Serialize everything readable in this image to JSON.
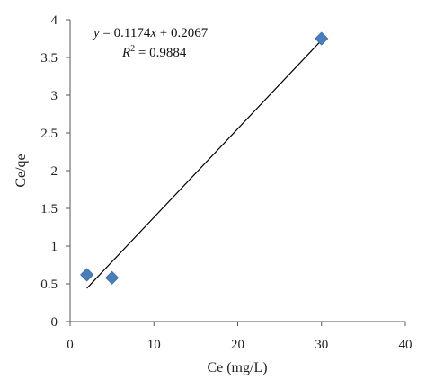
{
  "chart_data": {
    "type": "scatter",
    "xlabel": "Ce (mg/L)",
    "ylabel": "Ce/qe",
    "xlim": [
      0,
      40
    ],
    "ylim": [
      0,
      4
    ],
    "x_ticks": [
      0,
      10,
      20,
      30,
      40
    ],
    "y_ticks": [
      0,
      0.5,
      1,
      1.5,
      2,
      2.5,
      3,
      3.5,
      4
    ],
    "x_tick_labels": [
      "0",
      "10",
      "20",
      "30",
      "40"
    ],
    "y_tick_labels": [
      "0",
      "0.5",
      "1",
      "1.5",
      "2",
      "2.5",
      "3",
      "3.5",
      "4"
    ],
    "series": [
      {
        "marker": "diamond",
        "color": "#4a7ebb",
        "x": [
          2.0,
          5.0,
          30.0
        ],
        "y": [
          0.62,
          0.58,
          3.75
        ]
      }
    ],
    "trendline": {
      "slope": 0.1174,
      "intercept": 0.2067,
      "x_range": [
        2.0,
        30.0
      ],
      "color": "#000000",
      "equation": {
        "y_var": "y",
        "eq": " = 0.1174",
        "x_var": "x",
        "rest": " + 0.2067",
        "r_var": "R",
        "r_sup": "2",
        "r_rest": " = 0.9884"
      }
    },
    "grid": false,
    "legend": "none"
  }
}
